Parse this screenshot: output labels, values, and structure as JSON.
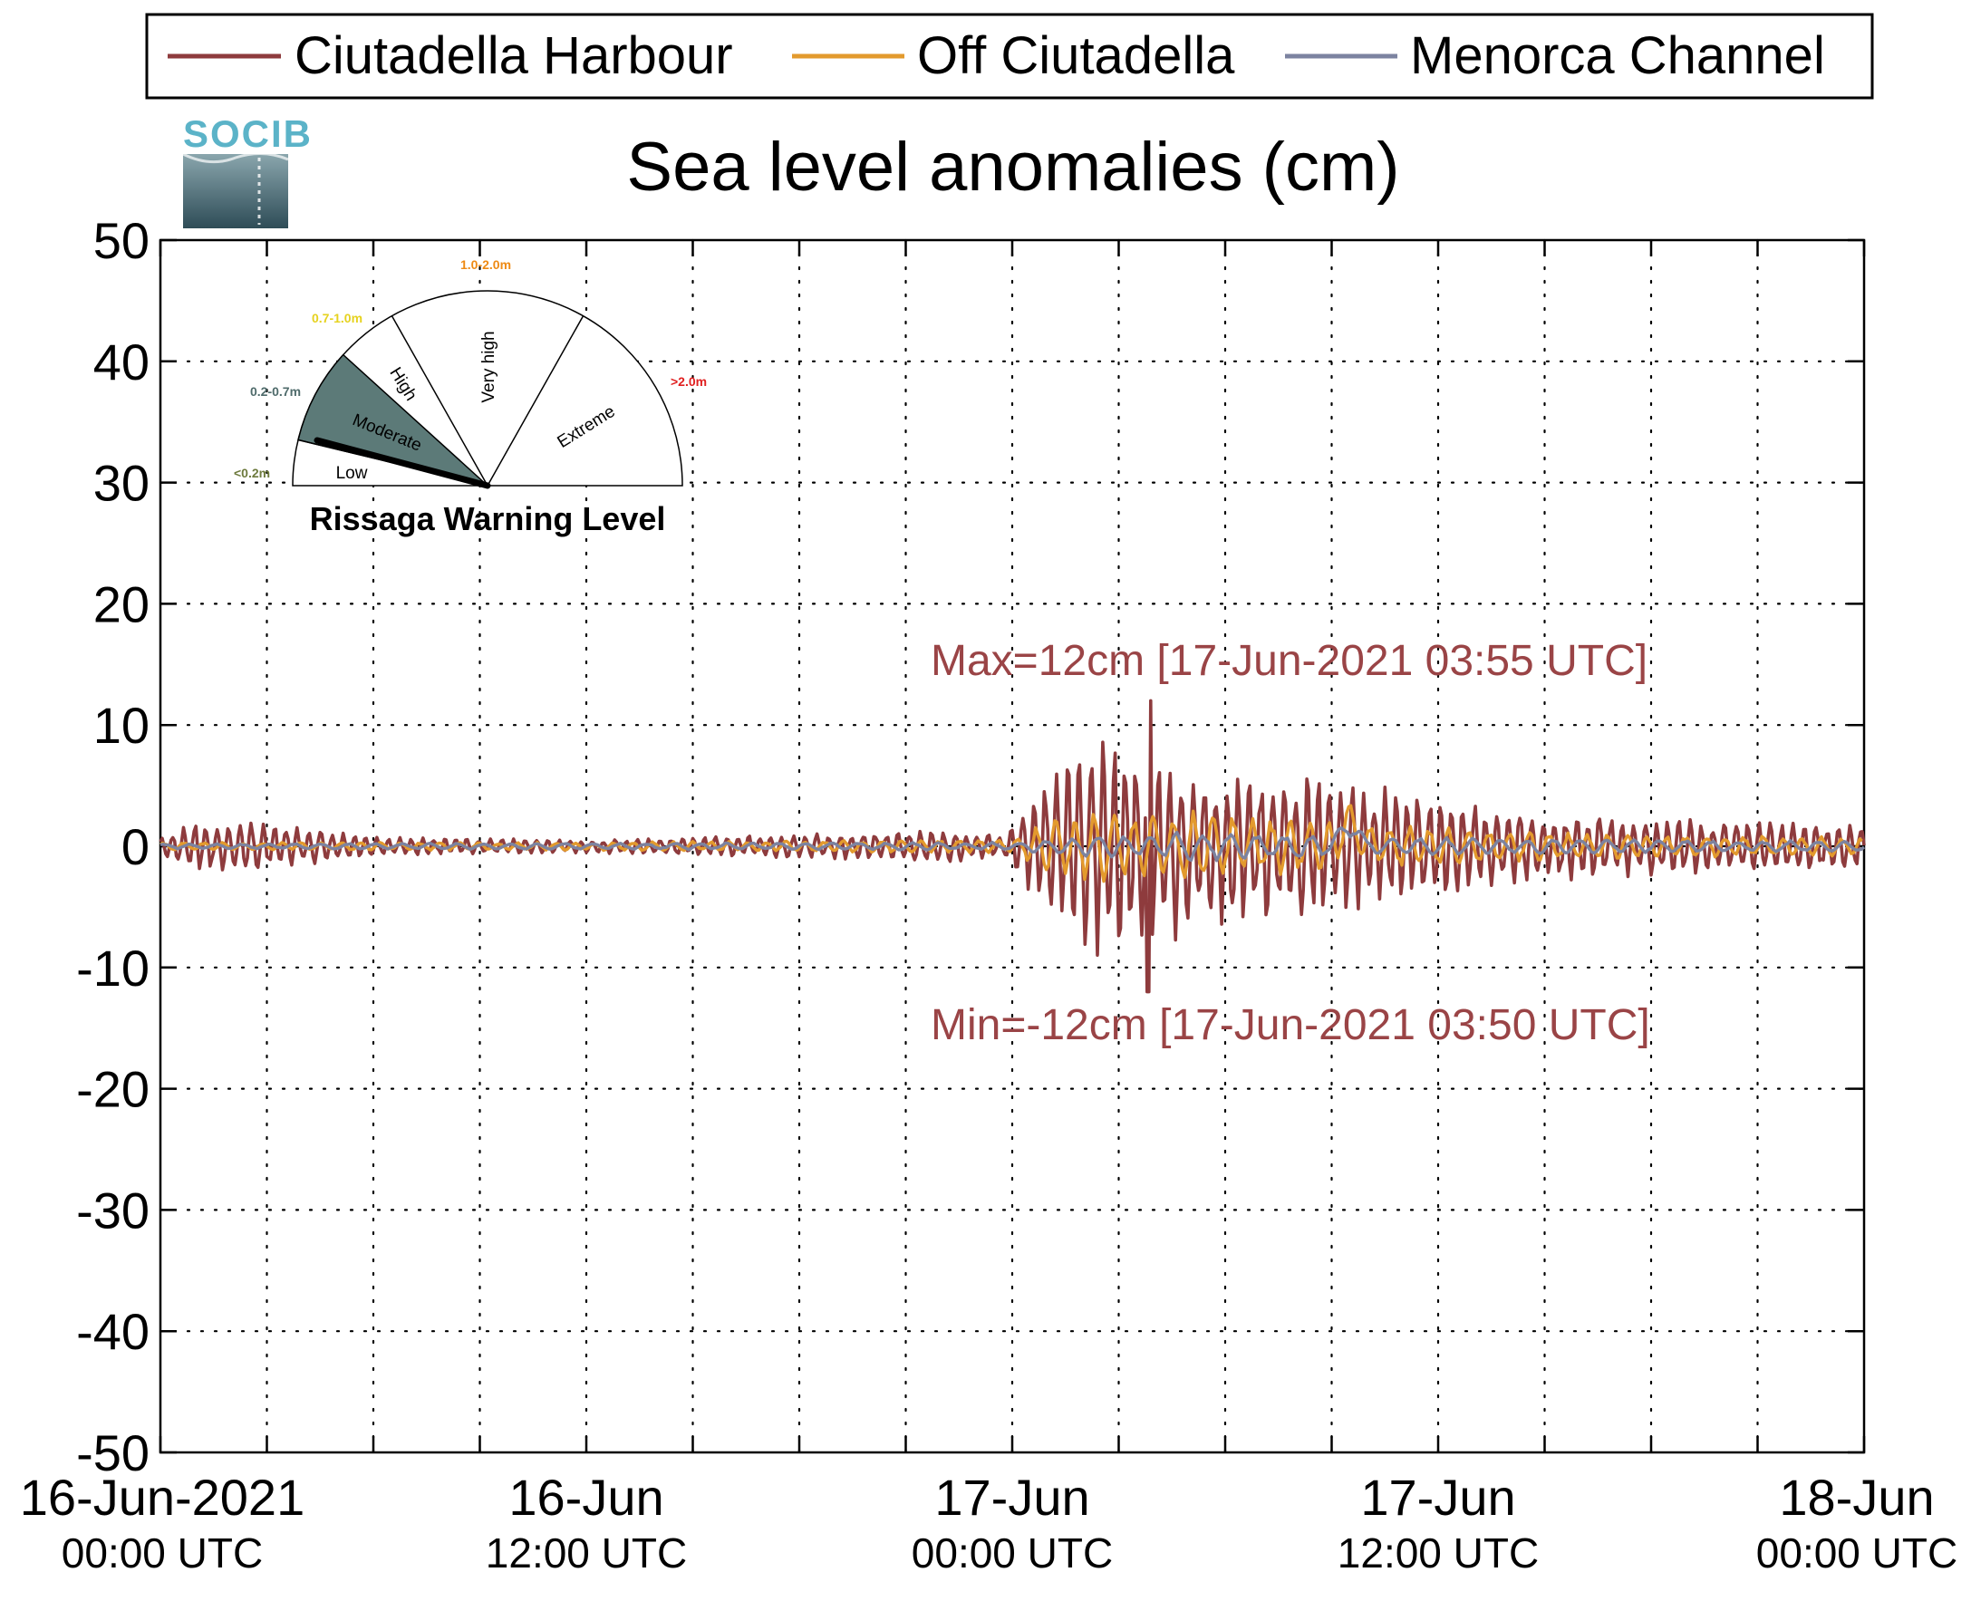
{
  "chart_data": {
    "type": "line",
    "title": "Sea level anomalies (cm)",
    "xlabel": "",
    "ylabel": "",
    "x_range": [
      "16-Jun-2021 00:00 UTC",
      "18-Jun-2021 00:00 UTC"
    ],
    "ylim": [
      -50,
      50
    ],
    "y_ticks": [
      50,
      40,
      30,
      20,
      10,
      0,
      -10,
      -20,
      -30,
      -40,
      -50
    ],
    "x_ticks": [
      {
        "line1": "16-Jun-2021",
        "line2": "00:00 UTC",
        "hour": 0
      },
      {
        "line1": "16-Jun",
        "line2": "12:00 UTC",
        "hour": 12
      },
      {
        "line1": "17-Jun",
        "line2": "00:00 UTC",
        "hour": 24
      },
      {
        "line1": "17-Jun",
        "line2": "12:00 UTC",
        "hour": 36
      },
      {
        "line1": "18-Jun",
        "line2": "00:00 UTC",
        "hour": 48
      }
    ],
    "grid": true,
    "legend_position": "top",
    "series": [
      {
        "name": "Ciutadella Harbour",
        "color": "#8e3b3d",
        "envelope_cm": [
          {
            "hour": 0,
            "amp": 0.6
          },
          {
            "hour": 1,
            "amp": 2.0
          },
          {
            "hour": 3,
            "amp": 1.8
          },
          {
            "hour": 6,
            "amp": 0.7
          },
          {
            "hour": 9,
            "amp": 0.6
          },
          {
            "hour": 12,
            "amp": 0.5
          },
          {
            "hour": 16,
            "amp": 0.8
          },
          {
            "hour": 19,
            "amp": 1.0
          },
          {
            "hour": 22,
            "amp": 1.3
          },
          {
            "hour": 23.8,
            "amp": 0.8
          },
          {
            "hour": 24.8,
            "amp": 5.0
          },
          {
            "hour": 26,
            "amp": 8.0
          },
          {
            "hour": 27.2,
            "amp": 9.0
          },
          {
            "hour": 28,
            "amp": 8.0
          },
          {
            "hour": 29.5,
            "amp": 6.0
          },
          {
            "hour": 31,
            "amp": 6.0
          },
          {
            "hour": 32.5,
            "amp": 5.5
          },
          {
            "hour": 35,
            "amp": 4.5
          },
          {
            "hour": 37,
            "amp": 3.5
          },
          {
            "hour": 40,
            "amp": 2.5
          },
          {
            "hour": 44,
            "amp": 2.0
          },
          {
            "hour": 48,
            "amp": 1.8
          }
        ]
      },
      {
        "name": "Off Ciutadella",
        "color": "#e39a2d",
        "envelope_cm": [
          {
            "hour": 0,
            "amp": 0.3
          },
          {
            "hour": 12,
            "amp": 0.3
          },
          {
            "hour": 22,
            "amp": 0.5
          },
          {
            "hour": 24,
            "amp": 0.5
          },
          {
            "hour": 25,
            "amp": 2.0
          },
          {
            "hour": 27,
            "amp": 3.0
          },
          {
            "hour": 30,
            "amp": 2.5
          },
          {
            "hour": 34,
            "amp": 1.8
          },
          {
            "hour": 40,
            "amp": 1.0
          },
          {
            "hour": 48,
            "amp": 0.7
          }
        ]
      },
      {
        "name": "Menorca Channel",
        "color": "#7c83a0",
        "envelope_cm": [
          {
            "hour": 0,
            "amp": 0.2
          },
          {
            "hour": 24,
            "amp": 0.3
          },
          {
            "hour": 26,
            "amp": 0.8
          },
          {
            "hour": 30,
            "amp": 1.2
          },
          {
            "hour": 34,
            "amp": 0.7
          },
          {
            "hour": 48,
            "amp": 0.4
          }
        ]
      }
    ],
    "annotations": [
      {
        "text": "Max=12cm [17-Jun-2021 03:55 UTC]",
        "color": "#9a4446",
        "value_cm": 12,
        "hour": 27.92
      },
      {
        "text": "Min=-12cm [17-Jun-2021 03:50 UTC]",
        "color": "#9a4446",
        "value_cm": -12,
        "hour": 27.83
      }
    ]
  },
  "logo": {
    "text": "SOCIB"
  },
  "warning_gauge": {
    "title": "Rissaga Warning Level",
    "sectors": [
      {
        "label": "Low",
        "range": "<0.2m",
        "range_color": "#6d7a3d"
      },
      {
        "label": "Moderate",
        "range": "0.2-0.7m",
        "range_color": "#4f6b6b"
      },
      {
        "label": "High",
        "range": "0.7-1.0m",
        "range_color": "#e6d21f"
      },
      {
        "label": "Very high",
        "range": "1.0-2.0m",
        "range_color": "#ee8a14"
      },
      {
        "label": "Extreme",
        "range": ">2.0m",
        "range_color": "#e02020"
      }
    ],
    "active_sector": "Moderate",
    "active_fill": "#5c7a78"
  }
}
